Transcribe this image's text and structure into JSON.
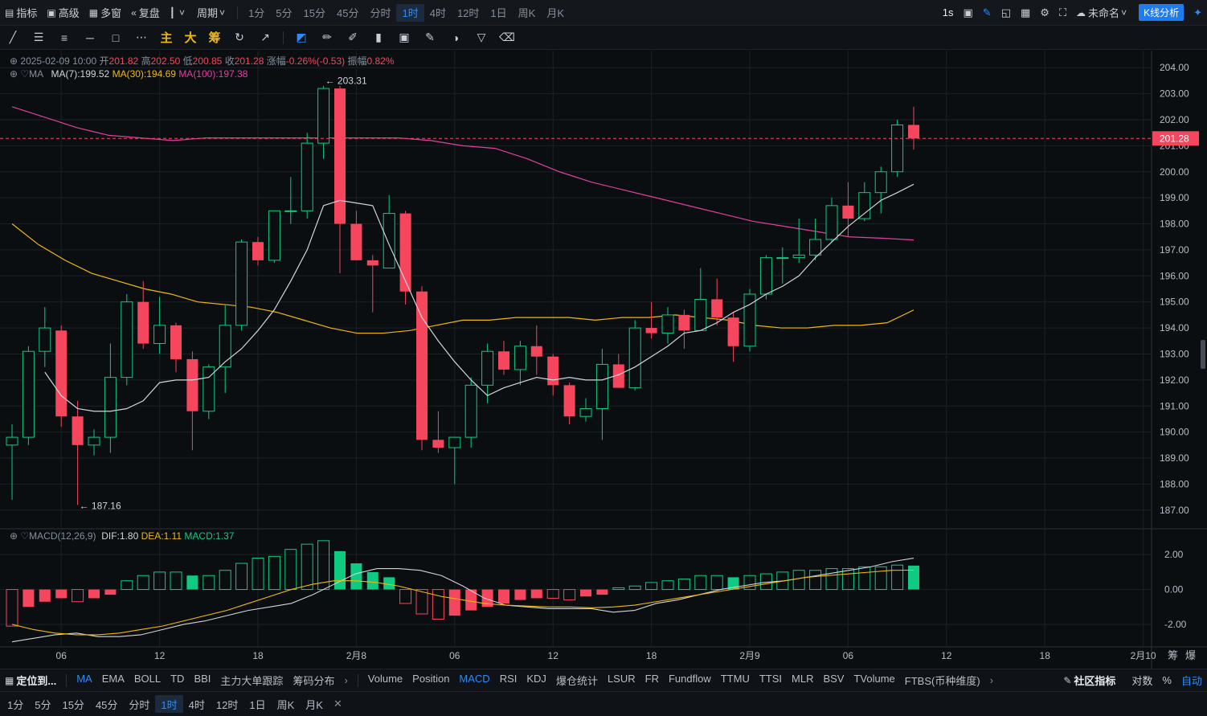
{
  "topbar": {
    "left": [
      {
        "icon": "indicator-icon",
        "label": "指标"
      },
      {
        "icon": "advanced-icon",
        "label": "高级"
      },
      {
        "icon": "multi-window-icon",
        "label": "多窗"
      },
      {
        "icon": "replay-icon",
        "label": "复盘"
      },
      {
        "icon": "candle-type-icon",
        "label": ""
      },
      {
        "icon": "period-icon",
        "label": "周期"
      }
    ],
    "periods": [
      "1分",
      "5分",
      "15分",
      "45分",
      "分时",
      "1时",
      "4时",
      "12时",
      "1日",
      "周K",
      "月K"
    ],
    "active_period": "1时",
    "right": {
      "interval": "1s",
      "layout_name": "未命名",
      "kline_button": "K线分析"
    }
  },
  "toolbar2": {
    "labels": [
      "主",
      "大",
      "筹"
    ]
  },
  "ohlc": {
    "datetime": "2025-02-09 10:00",
    "open_label": "开",
    "open": "201.82",
    "high_label": "高",
    "high": "202.50",
    "low_label": "低",
    "low": "200.85",
    "close_label": "收",
    "close": "201.28",
    "change_label": "涨幅",
    "change": "-0.26%(-0.53)",
    "amp_label": "振幅",
    "amp": "0.82%"
  },
  "ma_legend": {
    "name": "MA",
    "ma7": "MA(7):199.52",
    "ma30": "MA(30):194.69",
    "ma100": "MA(100):197.38"
  },
  "macd_legend": {
    "name": "MACD(12,26,9)",
    "dif": "DIF:1.80",
    "dea": "DEA:1.11",
    "macd": "MACD:1.37"
  },
  "colors": {
    "up": "#0ecb81",
    "down": "#f6465d",
    "ma7": "#d1d4dc",
    "ma30": "#f0b90b",
    "ma100": "#e040a0",
    "grid": "#1c2127"
  },
  "chart_data": {
    "type": "candlestick",
    "price_ticks": [
      "204.00",
      "203.00",
      "202.00",
      "201.00",
      "200.00",
      "199.00",
      "198.00",
      "197.00",
      "196.00",
      "195.00",
      "194.00",
      "193.00",
      "192.00",
      "191.00",
      "190.00",
      "189.00",
      "188.00",
      "187.00"
    ],
    "ylim": [
      186.5,
      204.5
    ],
    "last_price": "201.28",
    "high_marker": "203.31",
    "low_marker": "187.16",
    "macd_ticks": [
      "2.00",
      "0.00",
      "-2.00"
    ],
    "macd_ylim": [
      -3.2,
      2.7
    ],
    "x_labels": [
      "06",
      "12",
      "18",
      "2月8",
      "06",
      "12",
      "18",
      "2月9",
      "06",
      "12",
      "18",
      "2月10"
    ],
    "candles": [
      [
        189.5,
        190.3,
        187.4,
        189.8
      ],
      [
        189.8,
        193.3,
        189.5,
        193.1
      ],
      [
        193.1,
        194.8,
        192.5,
        194.0
      ],
      [
        193.9,
        194.1,
        190.2,
        190.6
      ],
      [
        190.6,
        191.2,
        187.2,
        189.5
      ],
      [
        189.5,
        190.1,
        189.1,
        189.8
      ],
      [
        189.8,
        193.4,
        189.2,
        192.1
      ],
      [
        192.1,
        195.3,
        191.8,
        195.0
      ],
      [
        195.0,
        195.8,
        193.2,
        193.4
      ],
      [
        193.4,
        195.2,
        193.0,
        194.1
      ],
      [
        194.1,
        194.2,
        192.3,
        192.8
      ],
      [
        192.8,
        193.1,
        189.3,
        190.8
      ],
      [
        190.8,
        192.6,
        190.5,
        192.5
      ],
      [
        192.5,
        194.9,
        191.5,
        194.1
      ],
      [
        194.1,
        197.4,
        193.9,
        197.3
      ],
      [
        197.3,
        197.5,
        196.4,
        196.6
      ],
      [
        196.6,
        198.5,
        196.5,
        198.5
      ],
      [
        198.5,
        199.8,
        198.0,
        198.5
      ],
      [
        198.5,
        201.5,
        198.2,
        201.1
      ],
      [
        201.1,
        203.3,
        200.5,
        203.2
      ],
      [
        203.2,
        203.3,
        196.1,
        198.0
      ],
      [
        198.0,
        198.5,
        196.6,
        196.6
      ],
      [
        196.6,
        196.8,
        194.6,
        196.4
      ],
      [
        196.3,
        199.1,
        196.3,
        198.4
      ],
      [
        198.4,
        198.5,
        194.9,
        195.4
      ],
      [
        195.4,
        195.6,
        189.3,
        189.7
      ],
      [
        189.7,
        190.8,
        189.2,
        189.4
      ],
      [
        189.4,
        189.8,
        188.0,
        189.8
      ],
      [
        189.8,
        192.1,
        189.4,
        191.8
      ],
      [
        191.8,
        193.4,
        191.1,
        193.1
      ],
      [
        193.1,
        193.5,
        192.2,
        192.4
      ],
      [
        192.4,
        193.5,
        191.8,
        193.3
      ],
      [
        193.3,
        194.1,
        192.2,
        192.9
      ],
      [
        192.9,
        193.0,
        191.4,
        191.8
      ],
      [
        191.8,
        191.9,
        190.3,
        190.6
      ],
      [
        190.6,
        191.3,
        190.4,
        190.9
      ],
      [
        190.9,
        193.2,
        189.7,
        192.6
      ],
      [
        192.6,
        193.0,
        191.7,
        191.7
      ],
      [
        191.7,
        194.3,
        191.6,
        194.0
      ],
      [
        194.0,
        195.0,
        193.6,
        193.8
      ],
      [
        193.8,
        194.8,
        193.4,
        194.5
      ],
      [
        194.5,
        194.7,
        193.2,
        193.9
      ],
      [
        193.9,
        196.3,
        193.9,
        195.1
      ],
      [
        195.1,
        195.9,
        194.1,
        194.4
      ],
      [
        194.4,
        194.6,
        192.7,
        193.3
      ],
      [
        193.3,
        195.5,
        193.1,
        195.3
      ],
      [
        195.3,
        196.8,
        195.1,
        196.7
      ],
      [
        196.7,
        197.1,
        195.7,
        196.7
      ],
      [
        196.7,
        198.2,
        196.5,
        196.8
      ],
      [
        196.8,
        198.2,
        196.6,
        197.4
      ],
      [
        197.4,
        199.0,
        197.3,
        198.7
      ],
      [
        198.7,
        199.6,
        197.5,
        198.2
      ],
      [
        198.2,
        199.6,
        198.1,
        199.2
      ],
      [
        199.2,
        200.2,
        198.4,
        200.0
      ],
      [
        200.0,
        202.0,
        199.8,
        201.8
      ],
      [
        201.8,
        202.5,
        200.85,
        201.28
      ]
    ],
    "ma7": [
      192.3,
      191.4,
      190.9,
      190.8,
      190.8,
      190.9,
      191.2,
      191.9,
      192.0,
      192.0,
      192.1,
      192.7,
      193.2,
      193.9,
      194.7,
      195.8,
      197.0,
      198.7,
      198.9,
      198.8,
      198.7,
      197.2,
      195.8,
      194.4,
      193.5,
      192.7,
      192.0,
      191.4,
      191.7,
      191.9,
      192.1,
      192.0,
      192.1,
      192.0,
      192.0,
      192.2,
      192.5,
      192.9,
      193.3,
      193.8,
      193.9,
      194.2,
      194.6,
      194.9,
      195.3,
      195.6,
      196.0,
      196.7,
      197.3,
      197.9,
      198.4,
      198.9,
      199.2,
      199.52
    ],
    "ma30": [
      198.0,
      197.2,
      196.6,
      196.1,
      195.8,
      195.5,
      195.3,
      195.0,
      194.9,
      194.8,
      194.6,
      194.3,
      194.0,
      193.8,
      193.8,
      193.9,
      194.1,
      194.3,
      194.3,
      194.4,
      194.4,
      194.4,
      194.3,
      194.4,
      194.4,
      194.5,
      194.4,
      194.3,
      194.1,
      194.0,
      194.0,
      194.1,
      194.1,
      194.2,
      194.69
    ],
    "ma100": [
      202.5,
      202.1,
      201.7,
      201.4,
      201.3,
      201.2,
      201.3,
      201.3,
      201.3,
      201.3,
      201.3,
      201.3,
      201.3,
      201.2,
      201.0,
      200.9,
      200.5,
      200.0,
      199.6,
      199.3,
      199.0,
      198.7,
      198.4,
      198.1,
      197.9,
      197.7,
      197.5,
      197.45,
      197.38
    ],
    "macd_hist": [
      -2.1,
      -1.0,
      -0.7,
      -0.5,
      -0.7,
      -0.5,
      -0.3,
      0.5,
      0.8,
      1.0,
      1.0,
      0.8,
      0.8,
      1.1,
      1.5,
      1.8,
      1.9,
      2.3,
      2.6,
      2.8,
      2.2,
      1.5,
      1.0,
      0.7,
      -0.8,
      -1.4,
      -1.7,
      -1.5,
      -1.2,
      -1.0,
      -0.8,
      -0.6,
      -0.5,
      -0.5,
      -0.6,
      -0.4,
      -0.3,
      0.1,
      0.2,
      0.4,
      0.5,
      0.6,
      0.8,
      0.8,
      0.7,
      0.8,
      0.9,
      1.0,
      1.1,
      1.1,
      1.2,
      1.2,
      1.3,
      1.3,
      1.4,
      1.37
    ],
    "dif": [
      -3.0,
      -2.8,
      -2.6,
      -2.5,
      -2.7,
      -2.7,
      -2.6,
      -2.3,
      -2.0,
      -1.8,
      -1.5,
      -1.2,
      -1.0,
      -0.8,
      -0.3,
      0.3,
      0.9,
      1.2,
      1.2,
      1.1,
      0.8,
      0.2,
      -0.5,
      -0.9,
      -1.0,
      -1.1,
      -1.1,
      -1.1,
      -1.3,
      -1.2,
      -0.8,
      -0.6,
      -0.3,
      0.0,
      0.2,
      0.4,
      0.5,
      0.7,
      0.9,
      1.1,
      1.3,
      1.6,
      1.8
    ],
    "dea": [
      -2.0,
      -2.3,
      -2.5,
      -2.6,
      -2.6,
      -2.5,
      -2.3,
      -2.1,
      -1.8,
      -1.5,
      -1.2,
      -0.8,
      -0.4,
      0.0,
      0.3,
      0.5,
      0.5,
      0.4,
      0.2,
      -0.1,
      -0.4,
      -0.6,
      -0.8,
      -0.9,
      -0.95,
      -1.0,
      -1.0,
      -1.05,
      -1.0,
      -0.9,
      -0.7,
      -0.5,
      -0.3,
      -0.1,
      0.1,
      0.3,
      0.5,
      0.7,
      0.8,
      0.9,
      1.0,
      1.1,
      1.11
    ]
  },
  "bottombar": {
    "locate": "定位到...",
    "main_indicators": [
      "MA",
      "EMA",
      "BOLL",
      "TD",
      "BBI",
      "主力大单跟踪",
      "筹码分布"
    ],
    "active_main": "MA",
    "sub_indicators": [
      "Volume",
      "Position",
      "MACD",
      "RSI",
      "KDJ",
      "爆仓统计",
      "LSUR",
      "FR",
      "Fundflow",
      "TTMU",
      "TTSI",
      "MLR",
      "BSV",
      "TVolume",
      "FTBS(币种维度)"
    ],
    "active_sub": "MACD",
    "community": "社区指标",
    "log": "对数",
    "percent": "%",
    "auto": "自动"
  },
  "bottombar2": {
    "periods": [
      "1分",
      "5分",
      "15分",
      "45分",
      "分时",
      "1时",
      "4时",
      "12时",
      "1日",
      "周K",
      "月K"
    ],
    "active": "1时"
  },
  "axis_extra": [
    "筹",
    "爆"
  ]
}
